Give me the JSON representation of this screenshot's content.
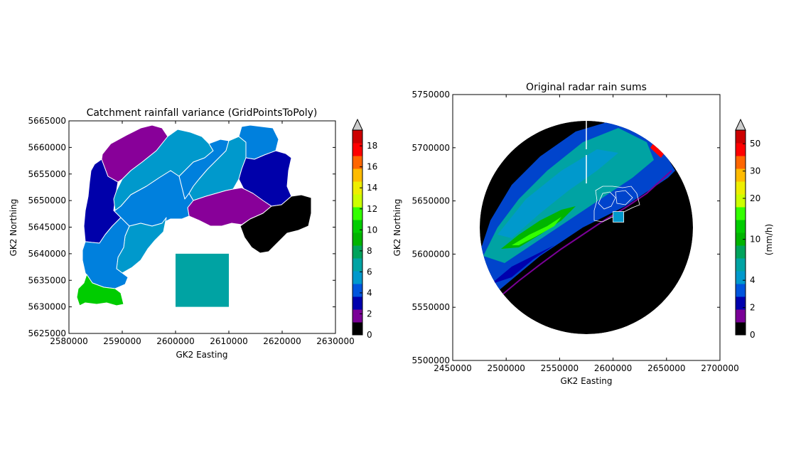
{
  "chart_data": [
    {
      "type": "map",
      "title": "Catchment rainfall variance (GridPointsToPoly)",
      "xlabel": "GK2 Easting",
      "ylabel": "GK2 Northing",
      "xlim": [
        2580000,
        2630000
      ],
      "ylim": [
        5625000,
        5665000
      ],
      "xticks": [
        "2580000",
        "2590000",
        "2600000",
        "2610000",
        "2620000",
        "2630000"
      ],
      "yticks": [
        "5625000",
        "5630000",
        "5635000",
        "5640000",
        "5645000",
        "5650000",
        "5655000",
        "5660000",
        "5665000"
      ],
      "colorbar": {
        "ticks": [
          "0",
          "2",
          "4",
          "6",
          "8",
          "10",
          "12",
          "14",
          "16",
          "18"
        ],
        "max": 19.5,
        "extend": "max",
        "label": ""
      },
      "shapes": [
        {
          "value": 8,
          "x": [
            2600000,
            2610000
          ],
          "y": [
            5630000,
            5640000
          ],
          "shape": "square"
        }
      ],
      "catchments": [
        {
          "id": "east-black",
          "color": "#000000"
        },
        {
          "id": "south-green",
          "color": "#00cc00"
        },
        {
          "id": "west-navy",
          "color": "#0000aa"
        },
        {
          "id": "east-navy",
          "color": "#0000aa"
        },
        {
          "id": "north-purple",
          "color": "#880099"
        },
        {
          "id": "mid-purple",
          "color": "#880099"
        }
      ]
    },
    {
      "type": "heatmap",
      "title": "Original radar rain sums",
      "xlabel": "GK2 Easting",
      "ylabel": "GK2 Northing",
      "xlim": [
        2450000,
        2700000
      ],
      "ylim": [
        5500000,
        5750000
      ],
      "xticks": [
        "2450000",
        "2500000",
        "2550000",
        "2600000",
        "2650000",
        "2700000"
      ],
      "yticks": [
        "5500000",
        "5550000",
        "5600000",
        "5650000",
        "5700000",
        "5750000"
      ],
      "radar": {
        "center_x": 2575000,
        "center_y": 5623000,
        "radius": 100000
      },
      "colorbar": {
        "ticks": [
          "0",
          "2",
          "4",
          "10",
          "20",
          "30",
          "50"
        ],
        "levels": [
          0,
          1,
          2,
          3,
          4,
          5,
          7.5,
          10,
          12.5,
          15,
          20,
          25,
          30,
          40,
          50,
          60
        ],
        "extend": "max",
        "label": "(mm/h)"
      }
    }
  ],
  "colors": {
    "cmap": [
      "#000000",
      "#7a0097",
      "#0000ad",
      "#0055dd",
      "#0099cc",
      "#00a3a3",
      "#00a35c",
      "#00b400",
      "#00cc00",
      "#33ff00",
      "#ccff00",
      "#eeee00",
      "#ffbb00",
      "#ff6600",
      "#ff0000",
      "#cc0000"
    ],
    "extend": "#cccccc"
  }
}
